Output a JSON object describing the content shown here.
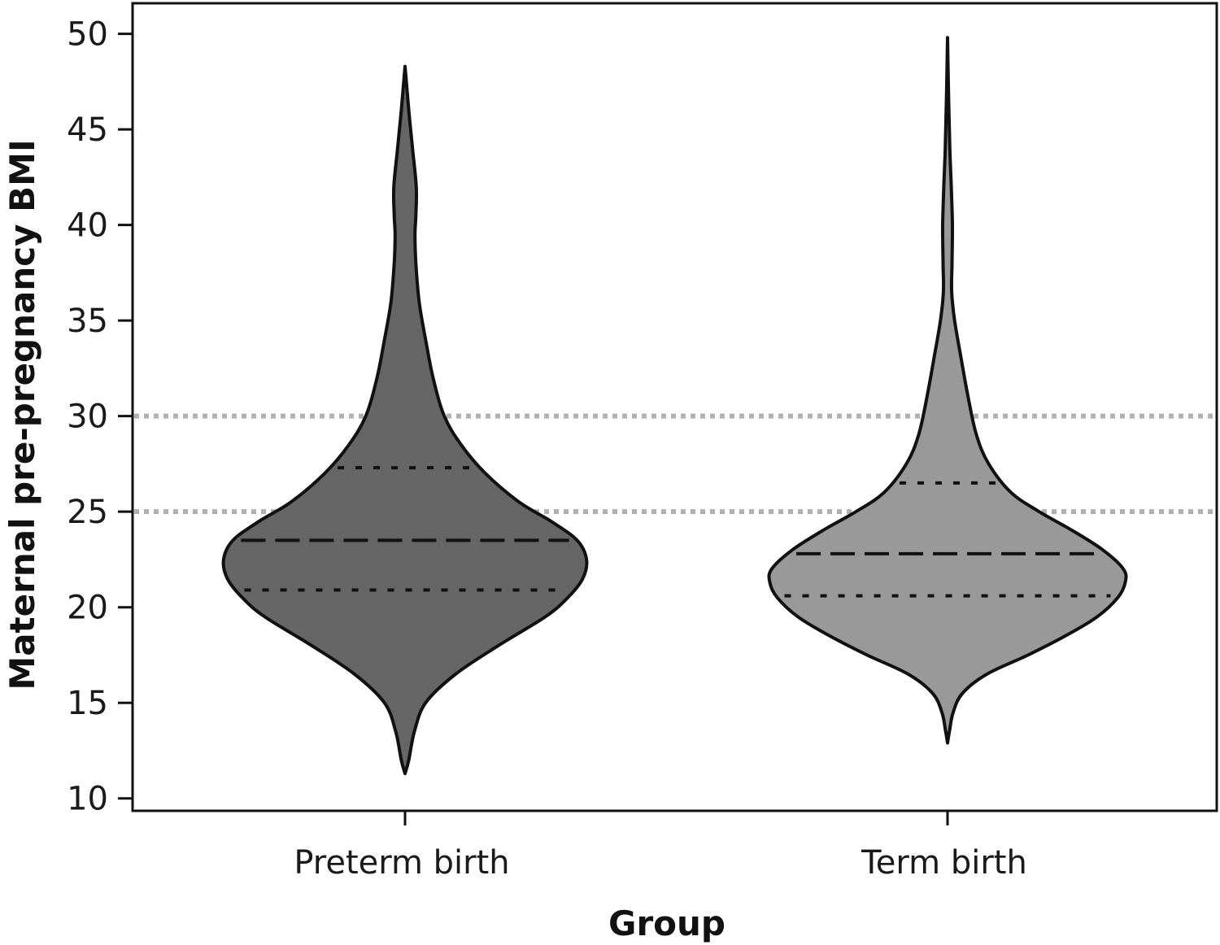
{
  "chart_data": {
    "type": "violin",
    "xlabel": "Group",
    "ylabel": "Maternal pre-pregnancy BMI",
    "ylim": [
      10,
      50
    ],
    "yticks": [
      10,
      15,
      20,
      25,
      30,
      35,
      40,
      45,
      50
    ],
    "grid": false,
    "reference_lines": [
      25,
      30
    ],
    "reference_line_color": "#b0b0b0",
    "categories": [
      "Preterm birth",
      "Term birth"
    ],
    "groups": [
      {
        "name": "Preterm birth",
        "fill": "#666666",
        "min": 11.3,
        "max": 48.3,
        "q1": 20.9,
        "median": 23.5,
        "q3": 27.3,
        "profile": [
          [
            11.3,
            0.0
          ],
          [
            12.0,
            0.02
          ],
          [
            13.5,
            0.05
          ],
          [
            15.0,
            0.11
          ],
          [
            16.5,
            0.27
          ],
          [
            18.0,
            0.5
          ],
          [
            19.5,
            0.75
          ],
          [
            20.5,
            0.87
          ],
          [
            21.5,
            0.95
          ],
          [
            22.5,
            0.97
          ],
          [
            23.5,
            0.92
          ],
          [
            24.5,
            0.78
          ],
          [
            25.5,
            0.61
          ],
          [
            27.0,
            0.43
          ],
          [
            28.5,
            0.3
          ],
          [
            30.0,
            0.21
          ],
          [
            32.0,
            0.15
          ],
          [
            34.0,
            0.11
          ],
          [
            36.0,
            0.075
          ],
          [
            38.0,
            0.058
          ],
          [
            39.5,
            0.053
          ],
          [
            40.5,
            0.058
          ],
          [
            42.0,
            0.06
          ],
          [
            44.0,
            0.04
          ],
          [
            46.0,
            0.02
          ],
          [
            48.3,
            0.0
          ]
        ]
      },
      {
        "name": "Term birth",
        "fill": "#999999",
        "min": 12.9,
        "max": 49.8,
        "q1": 20.6,
        "median": 22.8,
        "q3": 26.5,
        "profile": [
          [
            12.9,
            0.0
          ],
          [
            13.5,
            0.01
          ],
          [
            14.5,
            0.03
          ],
          [
            15.5,
            0.08
          ],
          [
            16.5,
            0.21
          ],
          [
            17.5,
            0.43
          ],
          [
            18.5,
            0.63
          ],
          [
            19.5,
            0.8
          ],
          [
            20.5,
            0.91
          ],
          [
            21.3,
            0.95
          ],
          [
            22.0,
            0.94
          ],
          [
            23.0,
            0.83
          ],
          [
            24.0,
            0.67
          ],
          [
            25.0,
            0.49
          ],
          [
            26.0,
            0.34
          ],
          [
            27.5,
            0.22
          ],
          [
            29.0,
            0.155
          ],
          [
            31.0,
            0.11
          ],
          [
            33.0,
            0.073
          ],
          [
            35.0,
            0.038
          ],
          [
            36.5,
            0.022
          ],
          [
            38.0,
            0.024
          ],
          [
            40.0,
            0.026
          ],
          [
            42.0,
            0.02
          ],
          [
            44.0,
            0.012
          ],
          [
            46.5,
            0.006
          ],
          [
            49.8,
            0.0
          ]
        ]
      }
    ]
  }
}
